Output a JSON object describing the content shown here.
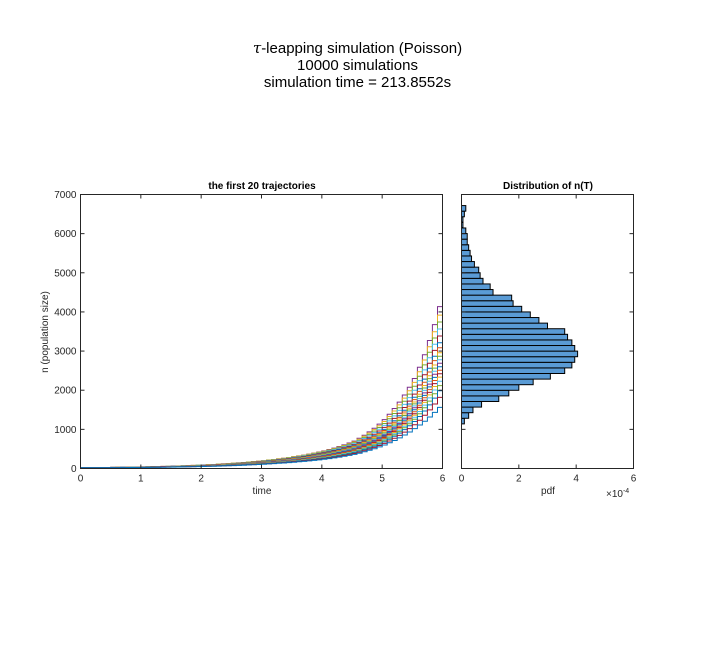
{
  "figure": {
    "title_symbol": "τ",
    "title_line1": "-leapping simulation (Poisson)",
    "title_line2": "10000 simulations",
    "title_line3": "simulation time = 213.8552s"
  },
  "chart_data": [
    {
      "type": "line",
      "title": "the first 20 trajectories",
      "xlabel": "time",
      "ylabel": "n (population size)",
      "xlim": [
        0,
        6
      ],
      "ylim": [
        0,
        7000
      ],
      "xticks": [
        0,
        1,
        2,
        3,
        4,
        5,
        6
      ],
      "yticks": [
        0,
        1000,
        2000,
        3000,
        4000,
        5000,
        6000,
        7000
      ],
      "grid": false,
      "step": true,
      "x": [
        0,
        0.5,
        1,
        1.5,
        2,
        2.5,
        3,
        3.5,
        4,
        4.5,
        5,
        5.5,
        6
      ],
      "series": [
        {
          "color": "#7e2f8e",
          "values": [
            20,
            28,
            40,
            60,
            90,
            135,
            200,
            300,
            450,
            700,
            1250,
            2300,
            4650
          ]
        },
        {
          "color": "#edb120",
          "values": [
            20,
            28,
            40,
            60,
            90,
            135,
            200,
            300,
            440,
            680,
            1200,
            2200,
            4400
          ]
        },
        {
          "color": "#77ac30",
          "values": [
            20,
            27,
            39,
            58,
            87,
            130,
            195,
            290,
            430,
            660,
            1150,
            2100,
            4200
          ]
        },
        {
          "color": "#4dbeee",
          "values": [
            20,
            27,
            38,
            56,
            84,
            126,
            188,
            280,
            415,
            640,
            1100,
            2000,
            4000
          ]
        },
        {
          "color": "#a2142f",
          "values": [
            20,
            27,
            37,
            55,
            82,
            122,
            182,
            270,
            400,
            610,
            1050,
            1900,
            3800
          ]
        },
        {
          "color": "#0072bd",
          "values": [
            20,
            26,
            36,
            53,
            79,
            118,
            176,
            260,
            385,
            590,
            1000,
            1820,
            3600
          ]
        },
        {
          "color": "#d95319",
          "values": [
            20,
            26,
            36,
            52,
            77,
            115,
            171,
            252,
            372,
            570,
            970,
            1760,
            3450
          ]
        },
        {
          "color": "#edb120",
          "values": [
            20,
            26,
            35,
            51,
            75,
            112,
            166,
            245,
            360,
            550,
            940,
            1700,
            3300
          ]
        },
        {
          "color": "#77ac30",
          "values": [
            20,
            25,
            34,
            50,
            73,
            109,
            161,
            238,
            350,
            535,
            910,
            1650,
            3200
          ]
        },
        {
          "color": "#4dbeee",
          "values": [
            20,
            25,
            34,
            49,
            72,
            106,
            156,
            231,
            340,
            520,
            880,
            1600,
            3100
          ]
        },
        {
          "color": "#7e2f8e",
          "values": [
            20,
            25,
            33,
            48,
            70,
            103,
            152,
            224,
            330,
            505,
            855,
            1550,
            3000
          ]
        },
        {
          "color": "#0072bd",
          "values": [
            20,
            25,
            33,
            47,
            68,
            100,
            148,
            217,
            320,
            490,
            830,
            1500,
            2900
          ]
        },
        {
          "color": "#d95319",
          "values": [
            20,
            24,
            32,
            46,
            67,
            98,
            144,
            211,
            310,
            475,
            805,
            1450,
            2800
          ]
        },
        {
          "color": "#a2142f",
          "values": [
            20,
            24,
            31,
            45,
            65,
            95,
            140,
            205,
            300,
            460,
            780,
            1400,
            2700
          ]
        },
        {
          "color": "#edb120",
          "values": [
            20,
            24,
            31,
            44,
            63,
            92,
            136,
            199,
            292,
            447,
            757,
            1360,
            2600
          ]
        },
        {
          "color": "#4dbeee",
          "values": [
            20,
            23,
            30,
            43,
            61,
            89,
            131,
            192,
            283,
            432,
            732,
            1310,
            2480
          ]
        },
        {
          "color": "#77ac30",
          "values": [
            20,
            23,
            29,
            42,
            59,
            86,
            127,
            186,
            273,
            417,
            707,
            1260,
            2350
          ]
        },
        {
          "color": "#0072bd",
          "values": [
            20,
            23,
            29,
            41,
            57,
            83,
            122,
            179,
            263,
            402,
            680,
            1200,
            2200
          ]
        },
        {
          "color": "#a2142f",
          "values": [
            20,
            22,
            28,
            39,
            55,
            79,
            116,
            170,
            250,
            382,
            640,
            1120,
            2000
          ]
        },
        {
          "color": "#0072bd",
          "values": [
            20,
            22,
            27,
            37,
            52,
            75,
            110,
            160,
            235,
            360,
            600,
            1020,
            1700
          ]
        }
      ]
    },
    {
      "type": "bar",
      "orientation": "horizontal",
      "title": "Distribution of n(T)",
      "xlabel": "pdf",
      "x_exponent": "×10",
      "x_exponent_power": "-4",
      "xlim": [
        0,
        6
      ],
      "ylim": [
        0,
        7000
      ],
      "xticks": [
        0,
        2,
        4,
        6
      ],
      "yticks": [
        0,
        1000,
        2000,
        3000,
        4000,
        5000,
        6000,
        7000
      ],
      "bar_color": "#5a9bd5",
      "edge_color": "#000000",
      "bin_width": 143,
      "bin_starts": [
        1140,
        1283,
        1426,
        1569,
        1712,
        1855,
        1998,
        2141,
        2284,
        2427,
        2570,
        2713,
        2856,
        2999,
        3142,
        3285,
        3428,
        3571,
        3714,
        3857,
        4000,
        4143,
        4286,
        4429,
        4572,
        4715,
        4858,
        5001,
        5144,
        5287,
        5430,
        5573,
        5716,
        5859,
        6002,
        6145,
        6288,
        6431,
        6574
      ],
      "values": [
        0.1,
        0.25,
        0.4,
        0.7,
        1.3,
        1.65,
        2.0,
        2.5,
        3.1,
        3.6,
        3.85,
        3.95,
        4.05,
        3.95,
        3.85,
        3.7,
        3.6,
        3.0,
        2.7,
        2.4,
        2.1,
        1.8,
        1.75,
        1.1,
        1.0,
        0.75,
        0.65,
        0.6,
        0.45,
        0.35,
        0.3,
        0.25,
        0.2,
        0.2,
        0.15,
        0.05,
        0.05,
        0.1,
        0.15
      ]
    }
  ]
}
